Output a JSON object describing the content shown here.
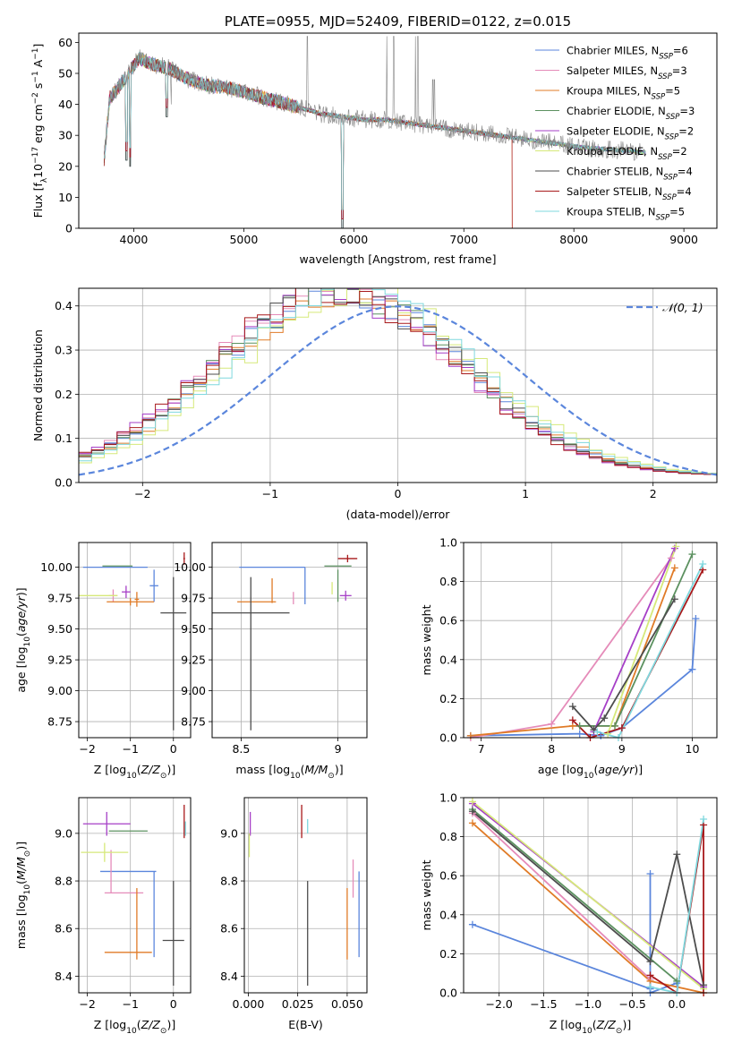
{
  "colors": {
    "Chabrier MILES": "#5b86dc",
    "Salpeter MILES": "#e58bb9",
    "Kroupa MILES": "#e07b27",
    "Chabrier ELODIE": "#5c9160",
    "Salpeter ELODIE": "#a63fc7",
    "Kroupa ELODIE": "#d6e97a",
    "Chabrier STELIB": "#4d4d4d",
    "Salpeter STELIB": "#a8191b",
    "Kroupa STELIB": "#7fd8de"
  },
  "chart_data": [
    {
      "id": "spectrum",
      "type": "line",
      "title": "PLATE=0955, MJD=52409, FIBERID=0122, z=0.015",
      "xlabel": "wavelength [Angstrom, rest frame]",
      "ylabel": "Flux [f_λ 10^-17 erg cm^-2 s^-1 A^-1]",
      "xlim": [
        3500,
        9300
      ],
      "ylim": [
        0,
        63
      ],
      "xticks": [
        4000,
        5000,
        6000,
        7000,
        8000,
        9000
      ],
      "yticks": [
        0,
        10,
        20,
        30,
        40,
        50,
        60
      ],
      "grid": false,
      "legend_position": "top-right",
      "legend": [
        {
          "model": "Chabrier MILES",
          "label": "Chabrier MILES, N",
          "sub": "SSP",
          "eq": "=6"
        },
        {
          "model": "Salpeter MILES",
          "label": "Salpeter MILES, N",
          "sub": "SSP",
          "eq": "=3"
        },
        {
          "model": "Kroupa MILES",
          "label": "Kroupa MILES, N",
          "sub": "SSP",
          "eq": "=5"
        },
        {
          "model": "Chabrier ELODIE",
          "label": "Chabrier ELODIE, N",
          "sub": "SSP",
          "eq": "=3"
        },
        {
          "model": "Salpeter ELODIE",
          "label": "Salpeter ELODIE, N",
          "sub": "SSP",
          "eq": "=2"
        },
        {
          "model": "Kroupa ELODIE",
          "label": "Kroupa ELODIE, N",
          "sub": "SSP",
          "eq": "=2"
        },
        {
          "model": "Chabrier STELIB",
          "label": "Chabrier STELIB, N",
          "sub": "SSP",
          "eq": "=4"
        },
        {
          "model": "Salpeter STELIB",
          "label": "Salpeter STELIB, N",
          "sub": "SSP",
          "eq": "=4"
        },
        {
          "model": "Kroupa STELIB",
          "label": "Kroupa STELIB, N",
          "sub": "SSP",
          "eq": "=5"
        }
      ],
      "continuum": [
        [
          3730,
          22
        ],
        [
          3780,
          42
        ],
        [
          3850,
          45
        ],
        [
          3950,
          50
        ],
        [
          4050,
          55
        ],
        [
          4150,
          53
        ],
        [
          4300,
          52
        ],
        [
          4500,
          48
        ],
        [
          4700,
          46
        ],
        [
          4900,
          45
        ],
        [
          5100,
          43
        ],
        [
          5300,
          41
        ],
        [
          5500,
          39
        ],
        [
          5700,
          37
        ],
        [
          5900,
          36
        ],
        [
          6100,
          35
        ],
        [
          6300,
          35
        ],
        [
          6500,
          34
        ],
        [
          6700,
          33
        ],
        [
          6900,
          32
        ],
        [
          7100,
          31
        ],
        [
          7300,
          30
        ],
        [
          7500,
          29
        ],
        [
          7700,
          28
        ],
        [
          7900,
          27
        ],
        [
          8100,
          26
        ],
        [
          8300,
          25.5
        ],
        [
          8500,
          25
        ],
        [
          8650,
          24.5
        ]
      ],
      "data_lines": [
        [
          4340,
          40
        ],
        [
          4861,
          47
        ],
        [
          5577,
          62
        ],
        [
          6300,
          62
        ],
        [
          6363,
          62
        ],
        [
          6560,
          62
        ],
        [
          6583,
          62
        ],
        [
          6717,
          48
        ],
        [
          6731,
          48
        ]
      ],
      "absorption": [
        [
          3933,
          22
        ],
        [
          3968,
          20
        ],
        [
          4300,
          36
        ],
        [
          5175,
          40
        ],
        [
          5893,
          0
        ],
        [
          5895,
          0
        ]
      ]
    },
    {
      "id": "residuals",
      "type": "line",
      "xlabel": "(data-model)/error",
      "ylabel": "Normed distribution",
      "xlim": [
        -2.5,
        2.5
      ],
      "ylim": [
        0,
        0.44
      ],
      "xticks": [
        -2,
        -1,
        0,
        1,
        2
      ],
      "yticks": [
        0.0,
        0.1,
        0.2,
        0.3,
        0.4
      ],
      "grid": true,
      "legend_position": "top-right",
      "reference": {
        "name": "𝒩(0, 1)",
        "mu": 0,
        "sigma": 1
      },
      "hist_x_range": [
        -2.5,
        2.5
      ],
      "hist_series_centers": [
        -0.45,
        -0.5,
        -0.4,
        -0.45,
        -0.5,
        -0.3,
        -0.45,
        -0.5,
        -0.35
      ]
    },
    {
      "id": "age_vs_Z",
      "type": "scatter",
      "xlabel": "Z [log10(Z/Z⊙)]",
      "ylabel": "age  [log10(age/yr)]",
      "xlim": [
        -2.2,
        0.4
      ],
      "ylim": [
        8.62,
        10.2
      ],
      "xticks": [
        -2,
        -1,
        0
      ],
      "yticks": [
        8.75,
        9.0,
        9.25,
        9.5,
        9.75,
        10.0
      ],
      "grid": true,
      "errorbars": [
        {
          "model": "Chabrier MILES",
          "x": -1.35,
          "y": 10.0,
          "xerr": 0.75,
          "yerr": 0.0
        },
        {
          "model": "Chabrier MILES",
          "x": -0.45,
          "y": 9.85,
          "xerr": 0.1,
          "yerr": 0.13
        },
        {
          "model": "Salpeter MILES",
          "x": -1.4,
          "y": 9.77,
          "xerr": 0.1,
          "yerr": 0.05
        },
        {
          "model": "Kroupa MILES",
          "x": -1.0,
          "y": 9.72,
          "xerr": 0.55,
          "yerr": 0.03
        },
        {
          "model": "Kroupa MILES",
          "x": -0.85,
          "y": 9.74,
          "xerr": 0.05,
          "yerr": 0.06
        },
        {
          "model": "Chabrier ELODIE",
          "x": -1.3,
          "y": 10.01,
          "xerr": 0.35,
          "yerr": 0.0
        },
        {
          "model": "Salpeter ELODIE",
          "x": -1.1,
          "y": 9.8,
          "xerr": 0.1,
          "yerr": 0.05
        },
        {
          "model": "Kroupa ELODIE",
          "x": -1.75,
          "y": 9.77,
          "xerr": 0.45,
          "yerr": 0.0
        },
        {
          "model": "Chabrier STELIB",
          "x": 0.0,
          "y": 9.63,
          "xerr": 0.3,
          "yerr": 0.0
        },
        {
          "model": "Chabrier STELIB",
          "x": 0.0,
          "y": 9.3,
          "xerr": 0.0,
          "yerr": 0.62
        },
        {
          "model": "Salpeter STELIB",
          "x": 0.25,
          "y": 10.07,
          "xerr": 0.02,
          "yerr": 0.05
        }
      ]
    },
    {
      "id": "age_vs_mass",
      "type": "scatter",
      "xlabel": "mass [log10(M/M⊙)]",
      "ylabel": "",
      "xlim": [
        8.35,
        9.15
      ],
      "ylim": [
        8.62,
        10.2
      ],
      "xticks": [
        8.5,
        9.0
      ],
      "yticks": [
        8.75,
        9.0,
        9.25,
        9.5,
        9.75,
        10.0
      ],
      "grid": true,
      "errorbars": [
        {
          "model": "Chabrier MILES",
          "x": 8.66,
          "y": 10.0,
          "xerr": 0.17,
          "yerr": 0.0
        },
        {
          "model": "Chabrier MILES",
          "x": 8.83,
          "y": 9.85,
          "xerr": 0.0,
          "yerr": 0.15
        },
        {
          "model": "Salpeter MILES",
          "x": 8.77,
          "y": 9.75,
          "xerr": 0.0,
          "yerr": 0.05
        },
        {
          "model": "Kroupa MILES",
          "x": 8.58,
          "y": 9.72,
          "xerr": 0.1,
          "yerr": 0.0
        },
        {
          "model": "Kroupa MILES",
          "x": 8.66,
          "y": 9.81,
          "xerr": 0.0,
          "yerr": 0.1
        },
        {
          "model": "Chabrier ELODIE",
          "x": 9.0,
          "y": 10.01,
          "xerr": 0.07,
          "yerr": 0.0
        },
        {
          "model": "Chabrier ELODIE",
          "x": 9.0,
          "y": 9.85,
          "xerr": 0.0,
          "yerr": 0.13
        },
        {
          "model": "Salpeter ELODIE",
          "x": 9.04,
          "y": 9.77,
          "xerr": 0.03,
          "yerr": 0.04
        },
        {
          "model": "Kroupa ELODIE",
          "x": 8.97,
          "y": 9.83,
          "xerr": 0.0,
          "yerr": 0.05
        },
        {
          "model": "Chabrier STELIB",
          "x": 8.55,
          "y": 9.63,
          "xerr": 0.2,
          "yerr": 0.0
        },
        {
          "model": "Chabrier STELIB",
          "x": 8.55,
          "y": 9.3,
          "xerr": 0.0,
          "yerr": 0.62
        },
        {
          "model": "Salpeter STELIB",
          "x": 9.05,
          "y": 10.07,
          "xerr": 0.05,
          "yerr": 0.03
        }
      ]
    },
    {
      "id": "mass_weight_vs_age",
      "type": "line",
      "xlabel": "age  [log10(age/yr)]",
      "ylabel": "mass weight",
      "xlim": [
        6.75,
        10.35
      ],
      "ylim": [
        0,
        1
      ],
      "xticks": [
        7,
        8,
        9,
        10
      ],
      "yticks": [
        0.0,
        0.2,
        0.4,
        0.6,
        0.8,
        1.0
      ],
      "grid": true,
      "series": [
        {
          "model": "Chabrier MILES",
          "x": [
            6.85,
            8.4,
            8.7,
            9.0,
            10.0,
            10.05
          ],
          "y": [
            0.01,
            0.02,
            0.01,
            0.05,
            0.35,
            0.61
          ]
        },
        {
          "model": "Salpeter MILES",
          "x": [
            6.85,
            8.0,
            9.7
          ],
          "y": [
            0.0,
            0.07,
            0.92
          ]
        },
        {
          "model": "Kroupa MILES",
          "x": [
            6.85,
            8.3,
            8.9,
            9.75
          ],
          "y": [
            0.01,
            0.06,
            0.06,
            0.87
          ]
        },
        {
          "model": "Chabrier ELODIE",
          "x": [
            8.4,
            8.9,
            10.0
          ],
          "y": [
            0.06,
            0.06,
            0.94
          ]
        },
        {
          "model": "Salpeter ELODIE",
          "x": [
            8.6,
            9.75
          ],
          "y": [
            0.03,
            0.97
          ]
        },
        {
          "model": "Kroupa ELODIE",
          "x": [
            8.8,
            9.77
          ],
          "y": [
            0.02,
            0.98
          ]
        },
        {
          "model": "Chabrier STELIB",
          "x": [
            8.3,
            8.6,
            8.75,
            9.75
          ],
          "y": [
            0.16,
            0.04,
            0.1,
            0.71
          ]
        },
        {
          "model": "Salpeter STELIB",
          "x": [
            8.3,
            8.55,
            9.0,
            10.15
          ],
          "y": [
            0.09,
            0.0,
            0.05,
            0.86
          ]
        },
        {
          "model": "Kroupa STELIB",
          "x": [
            8.65,
            8.95,
            10.15
          ],
          "y": [
            0.03,
            0.0,
            0.89
          ]
        }
      ]
    },
    {
      "id": "mass_vs_Z",
      "type": "scatter",
      "xlabel": "Z [log10(Z/Z⊙)]",
      "ylabel": "mass [log10(M/M⊙)]",
      "xlim": [
        -2.2,
        0.4
      ],
      "ylim": [
        8.33,
        9.15
      ],
      "xticks": [
        -2,
        -1,
        0
      ],
      "yticks": [
        8.4,
        8.6,
        8.8,
        9.0
      ],
      "grid": true,
      "errorbars": [
        {
          "model": "Chabrier MILES",
          "x": -1.05,
          "y": 8.84,
          "xerr": 0.65,
          "yerr": 0.0
        },
        {
          "model": "Chabrier MILES",
          "x": -0.45,
          "y": 8.66,
          "xerr": 0.0,
          "yerr": 0.18
        },
        {
          "model": "Salpeter MILES",
          "x": -1.15,
          "y": 8.75,
          "xerr": 0.45,
          "yerr": 0.0
        },
        {
          "model": "Salpeter MILES",
          "x": -1.45,
          "y": 8.84,
          "xerr": 0.0,
          "yerr": 0.09
        },
        {
          "model": "Kroupa MILES",
          "x": -1.05,
          "y": 8.5,
          "xerr": 0.55,
          "yerr": 0.0
        },
        {
          "model": "Kroupa MILES",
          "x": -0.85,
          "y": 8.62,
          "xerr": 0.0,
          "yerr": 0.15
        },
        {
          "model": "Chabrier ELODIE",
          "x": -1.05,
          "y": 9.01,
          "xerr": 0.45,
          "yerr": 0.0
        },
        {
          "model": "Salpeter ELODIE",
          "x": -1.55,
          "y": 9.04,
          "xerr": 0.55,
          "yerr": 0.05
        },
        {
          "model": "Kroupa ELODIE",
          "x": -1.6,
          "y": 8.92,
          "xerr": 0.55,
          "yerr": 0.04
        },
        {
          "model": "Chabrier STELIB",
          "x": 0.0,
          "y": 8.55,
          "xerr": 0.25,
          "yerr": 0.0
        },
        {
          "model": "Chabrier STELIB",
          "x": 0.0,
          "y": 8.58,
          "xerr": 0.0,
          "yerr": 0.22
        },
        {
          "model": "Salpeter STELIB",
          "x": 0.25,
          "y": 9.05,
          "xerr": 0.0,
          "yerr": 0.07
        },
        {
          "model": "Kroupa STELIB",
          "x": 0.28,
          "y": 9.02,
          "xerr": 0.0,
          "yerr": 0.03
        }
      ]
    },
    {
      "id": "mass_vs_EBV",
      "type": "scatter",
      "xlabel": "E(B-V)",
      "ylabel": "",
      "xlim": [
        -0.002,
        0.06
      ],
      "ylim": [
        8.33,
        9.15
      ],
      "xticks": [
        0.0,
        0.025,
        0.05
      ],
      "xticklabels": [
        "0.000",
        "0.025",
        "0.050"
      ],
      "yticks": [
        8.4,
        8.6,
        8.8,
        9.0
      ],
      "grid": true,
      "errorbars": [
        {
          "model": "Chabrier MILES",
          "x": 0.056,
          "y": 8.66,
          "xerr": 0.0,
          "yerr": 0.18
        },
        {
          "model": "Salpeter MILES",
          "x": 0.053,
          "y": 8.81,
          "xerr": 0.0,
          "yerr": 0.08
        },
        {
          "model": "Kroupa MILES",
          "x": 0.05,
          "y": 8.62,
          "xerr": 0.0,
          "yerr": 0.15
        },
        {
          "model": "Salpeter ELODIE",
          "x": 0.001,
          "y": 9.04,
          "xerr": 0.0,
          "yerr": 0.05
        },
        {
          "model": "Kroupa ELODIE",
          "x": 0.0005,
          "y": 8.95,
          "xerr": 0.0,
          "yerr": 0.05
        },
        {
          "model": "Chabrier STELIB",
          "x": 0.03,
          "y": 8.58,
          "xerr": 0.0,
          "yerr": 0.22
        },
        {
          "model": "Salpeter STELIB",
          "x": 0.027,
          "y": 9.05,
          "xerr": 0.0,
          "yerr": 0.07
        },
        {
          "model": "Kroupa STELIB",
          "x": 0.03,
          "y": 9.03,
          "xerr": 0.0,
          "yerr": 0.03
        }
      ]
    },
    {
      "id": "mass_weight_vs_Z",
      "type": "line",
      "xlabel": "Z [log10(Z/Z⊙)]",
      "ylabel": "mass weight",
      "xlim": [
        -2.4,
        0.45
      ],
      "ylim": [
        0,
        1
      ],
      "xticks": [
        -2.0,
        -1.5,
        -1.0,
        -0.5,
        0.0
      ],
      "xticklabels": [
        "−2.0",
        "−1.5",
        "−1.0",
        "−0.5",
        "0.0"
      ],
      "yticks": [
        0.0,
        0.2,
        0.4,
        0.6,
        0.8,
        1.0
      ],
      "grid": true,
      "series": [
        {
          "model": "Chabrier MILES",
          "x": [
            -2.3,
            -0.3,
            -0.3,
            -0.3,
            0.0
          ],
          "y": [
            0.35,
            0.02,
            0.61,
            0.0,
            0.05
          ]
        },
        {
          "model": "Salpeter MILES",
          "x": [
            -2.3,
            -0.3
          ],
          "y": [
            0.92,
            0.07
          ]
        },
        {
          "model": "Kroupa MILES",
          "x": [
            -2.3,
            -0.3,
            0.3
          ],
          "y": [
            0.87,
            0.06,
            0.0
          ]
        },
        {
          "model": "Chabrier ELODIE",
          "x": [
            -2.3,
            0.0
          ],
          "y": [
            0.94,
            0.06
          ]
        },
        {
          "model": "Salpeter ELODIE",
          "x": [
            -2.3,
            0.3
          ],
          "y": [
            0.97,
            0.03
          ]
        },
        {
          "model": "Kroupa ELODIE",
          "x": [
            -2.3,
            0.3
          ],
          "y": [
            0.98,
            0.02
          ]
        },
        {
          "model": "Chabrier STELIB",
          "x": [
            -2.3,
            -0.3,
            0.0,
            0.3
          ],
          "y": [
            0.93,
            0.16,
            0.71,
            0.04
          ]
        },
        {
          "model": "Salpeter STELIB",
          "x": [
            -0.3,
            0.0,
            0.3,
            0.3
          ],
          "y": [
            0.09,
            0.0,
            0.86,
            0.0
          ]
        },
        {
          "model": "Kroupa STELIB",
          "x": [
            -0.3,
            0.0,
            0.3
          ],
          "y": [
            0.03,
            0.0,
            0.89
          ]
        }
      ]
    }
  ]
}
